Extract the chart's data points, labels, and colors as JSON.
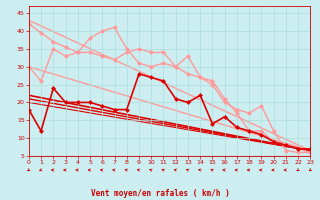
{
  "bg_color": "#cceef0",
  "grid_color": "#aadddd",
  "x_ticks": [
    0,
    1,
    2,
    3,
    4,
    5,
    6,
    7,
    8,
    9,
    10,
    11,
    12,
    13,
    14,
    15,
    16,
    17,
    18,
    19,
    20,
    21,
    22,
    23
  ],
  "xlabel": "Vent moyen/en rafales ( km/h )",
  "ylim": [
    5,
    47
  ],
  "yticks": [
    5,
    10,
    15,
    20,
    25,
    30,
    35,
    40,
    45
  ],
  "xlim": [
    0,
    23
  ],
  "line_light1": {
    "x": [
      0,
      1,
      2,
      3,
      4,
      5,
      6,
      7,
      8,
      9,
      10,
      11,
      12,
      13,
      14,
      15,
      16,
      17,
      18,
      19,
      20,
      21,
      22,
      23
    ],
    "y": [
      42,
      39.5,
      37,
      35.5,
      34,
      38,
      40,
      41,
      35,
      31,
      30,
      31,
      30,
      33,
      27,
      25,
      20,
      18,
      17,
      19,
      12,
      6.5,
      6,
      6
    ],
    "color": "#ff9999",
    "lw": 1.0,
    "ms": 2.5
  },
  "line_light2": {
    "x": [
      0,
      1,
      2,
      3,
      4,
      5,
      6,
      7,
      8,
      9,
      10,
      11,
      12,
      13,
      14,
      15,
      16,
      17,
      18,
      19,
      20,
      21,
      22,
      23
    ],
    "y": [
      30,
      26,
      35,
      33,
      34,
      34,
      33,
      32,
      34,
      35,
      34,
      34,
      30,
      28,
      27,
      26,
      21,
      17,
      12,
      12,
      9,
      8,
      7,
      6
    ],
    "color": "#ff9999",
    "lw": 1.0,
    "ms": 2.5
  },
  "line_dark1": {
    "x": [
      0,
      1,
      2,
      3,
      4,
      5,
      6,
      7,
      8,
      9,
      10,
      11,
      12,
      13,
      14,
      15,
      16,
      17,
      18,
      19,
      20,
      21,
      22,
      23
    ],
    "y": [
      18,
      12,
      24,
      20,
      20,
      20,
      19,
      18,
      18,
      28,
      27,
      26,
      21,
      20,
      22,
      14,
      16,
      13,
      12,
      11,
      9,
      8,
      7,
      7
    ],
    "color": "#dd0000",
    "lw": 1.2,
    "ms": 2.5
  },
  "diag_lines": [
    {
      "x0": 0,
      "y0": 43,
      "x1": 23,
      "y1": 6.5,
      "color": "#ff9999",
      "lw": 1.0
    },
    {
      "x0": 0,
      "y0": 30,
      "x1": 23,
      "y1": 6.5,
      "color": "#ff9999",
      "lw": 1.0
    },
    {
      "x0": 0,
      "y0": 22,
      "x1": 23,
      "y1": 6.5,
      "color": "#dd0000",
      "lw": 1.2
    },
    {
      "x0": 0,
      "y0": 21,
      "x1": 23,
      "y1": 6.5,
      "color": "#dd0000",
      "lw": 1.0
    },
    {
      "x0": 0,
      "y0": 20,
      "x1": 23,
      "y1": 6.5,
      "color": "#dd0000",
      "lw": 0.8
    }
  ],
  "wind_arrows": {
    "x": [
      0,
      1,
      2,
      3,
      4,
      5,
      6,
      7,
      8,
      9,
      10,
      11,
      12,
      13,
      14,
      15,
      16,
      17,
      18,
      19,
      20,
      21,
      22,
      23
    ],
    "angles": [
      225,
      210,
      180,
      180,
      180,
      180,
      170,
      170,
      160,
      160,
      155,
      150,
      150,
      150,
      150,
      150,
      175,
      180,
      180,
      180,
      190,
      190,
      225,
      225
    ]
  }
}
